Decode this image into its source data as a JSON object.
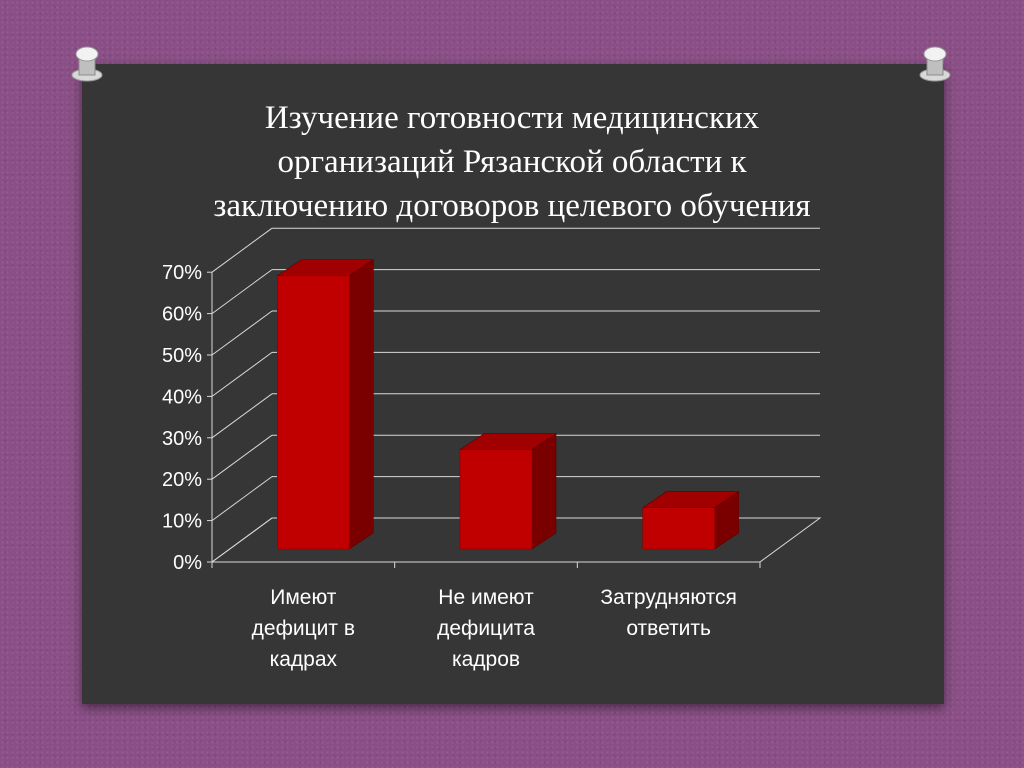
{
  "slide": {
    "title_lines": [
      "Изучение готовности  медицинских",
      "организаций Рязанской области к",
      "заключению договоров целевого обучения"
    ]
  },
  "colors": {
    "background": "#8a4f86",
    "board": "#363636",
    "bar_front": "#c00000",
    "bar_top": "#a00000",
    "bar_side": "#7a0000",
    "text": "#ffffff"
  },
  "chart_data": {
    "type": "bar",
    "style": "3d-column",
    "categories": [
      [
        "Имеют",
        "дефицит в",
        "кадрах"
      ],
      [
        "Не имеют",
        "дефицита",
        "кадров"
      ],
      [
        "Затрудняются",
        "ответить"
      ]
    ],
    "values": [
      66,
      24,
      10
    ],
    "unit": "%",
    "ylim": [
      0,
      70
    ],
    "yticks": [
      "0%",
      "10%",
      "20%",
      "30%",
      "40%",
      "50%",
      "60%",
      "70%"
    ],
    "grid": true,
    "legend": "none"
  }
}
